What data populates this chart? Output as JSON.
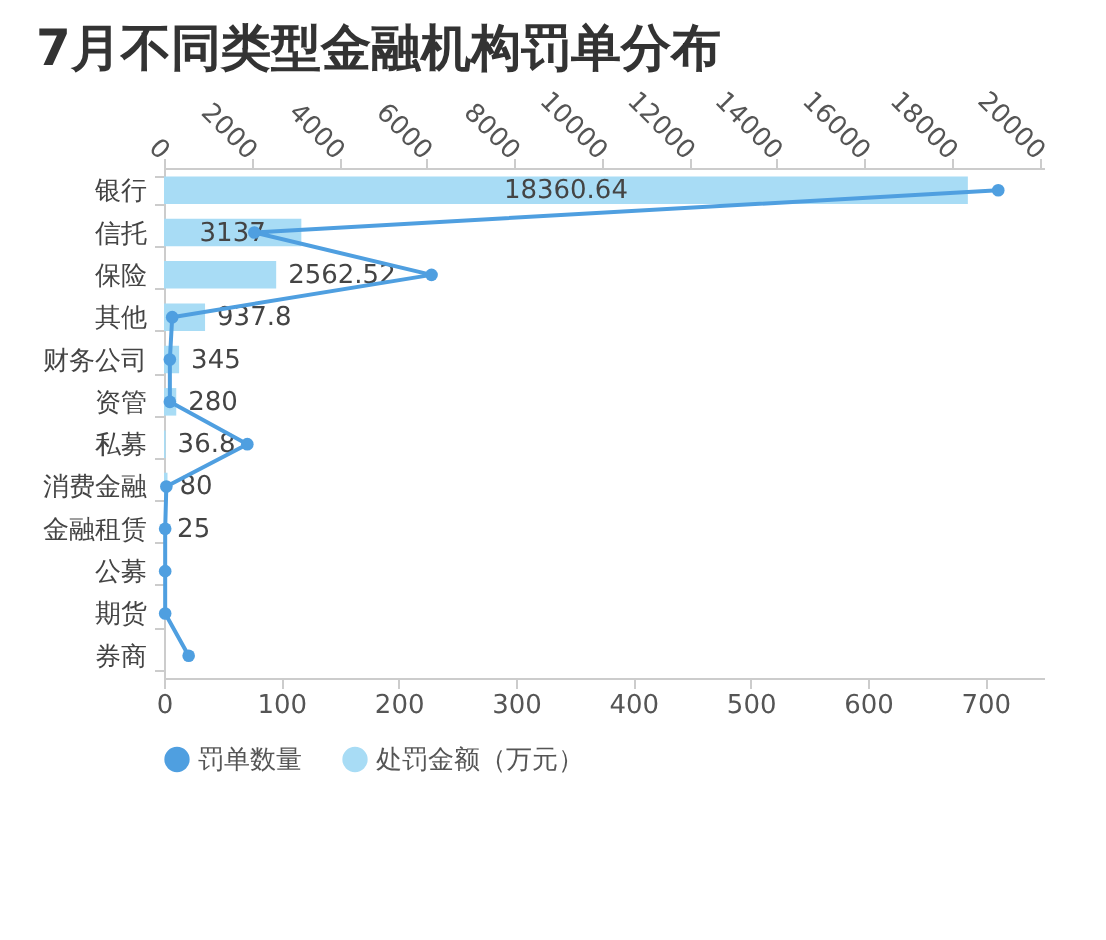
{
  "chart_data": {
    "type": "bar",
    "orientation": "horizontal",
    "title": "7月不同类型金融机构罚单分布",
    "categories": [
      "银行",
      "信托",
      "保险",
      "其他",
      "财务公司",
      "资管",
      "私募",
      "消费金融",
      "金融租赁",
      "公募",
      "期货",
      "券商"
    ],
    "series": [
      {
        "name": "罚单数量",
        "type": "line",
        "color": "#4f9fe0",
        "values": [
          711,
          77,
          228,
          7,
          5,
          5,
          71,
          2,
          1,
          1,
          1,
          21
        ]
      },
      {
        "name": "处罚金额（万元）",
        "axis": "x2",
        "color": "#a8dcf5",
        "values": [
          18360.64,
          3137,
          2562.52,
          937.8,
          345,
          280,
          36.8,
          80,
          25,
          null,
          null,
          null
        ],
        "value_labels": [
          "18360.64",
          "3137",
          "2562.52",
          "937.8",
          "345",
          "280",
          "36.8",
          "80",
          "25",
          null,
          null,
          null
        ]
      }
    ],
    "xlim": [
      0,
      750
    ],
    "xticks": [
      0,
      100,
      200,
      300,
      400,
      500,
      600,
      700
    ],
    "x2lim": [
      0,
      20100
    ],
    "x2ticks": [
      0,
      2000,
      4000,
      6000,
      8000,
      10000,
      12000,
      14000,
      16000,
      18000,
      20000
    ],
    "legend": "bottom",
    "marker": "circle",
    "grid": false
  }
}
